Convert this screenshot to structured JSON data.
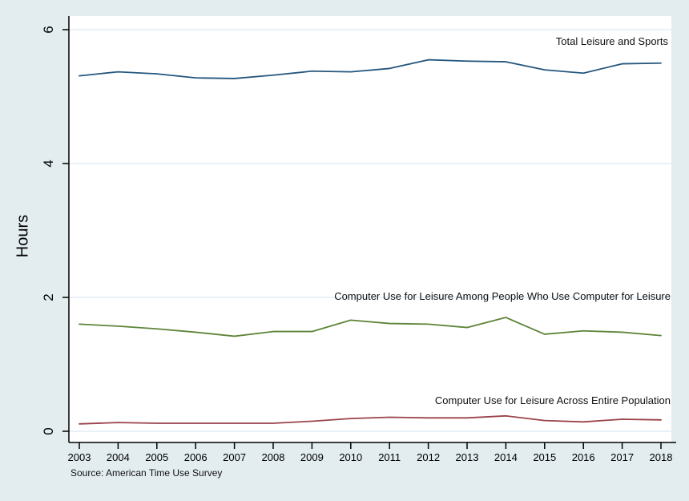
{
  "chart_data": {
    "type": "line",
    "title": "",
    "xlabel": "",
    "ylabel": "Hours",
    "ylim": [
      0,
      6
    ],
    "yticks": [
      0,
      2,
      4,
      6
    ],
    "grid": true,
    "legend_position": "inline-annotations",
    "x": [
      2003,
      2004,
      2005,
      2006,
      2007,
      2008,
      2009,
      2010,
      2011,
      2012,
      2013,
      2014,
      2015,
      2016,
      2017,
      2018
    ],
    "series": [
      {
        "name": "Total Leisure and Sports",
        "color": "#24567e",
        "values": [
          5.31,
          5.37,
          5.34,
          5.28,
          5.27,
          5.32,
          5.38,
          5.37,
          5.42,
          5.55,
          5.53,
          5.52,
          5.4,
          5.35,
          5.49,
          5.5
        ]
      },
      {
        "name": "Computer Use for Leisure Among People Who Use Computer for Leisure",
        "color": "#5d8439",
        "values": [
          1.6,
          1.57,
          1.53,
          1.48,
          1.42,
          1.49,
          1.49,
          1.66,
          1.61,
          1.6,
          1.55,
          1.7,
          1.45,
          1.5,
          1.48,
          1.43
        ]
      },
      {
        "name": "Computer Use for Leisure Across Entire Population",
        "color": "#9a4349",
        "values": [
          0.11,
          0.13,
          0.12,
          0.12,
          0.12,
          0.12,
          0.15,
          0.19,
          0.21,
          0.2,
          0.2,
          0.23,
          0.16,
          0.14,
          0.18,
          0.17
        ]
      }
    ],
    "source_note": "Source: American Time Use Survey"
  },
  "style": {
    "background": "#e3edf0",
    "plot_background": "#ffffff",
    "gridline_color": "#e2ecf5",
    "axis_color": "#000000"
  }
}
